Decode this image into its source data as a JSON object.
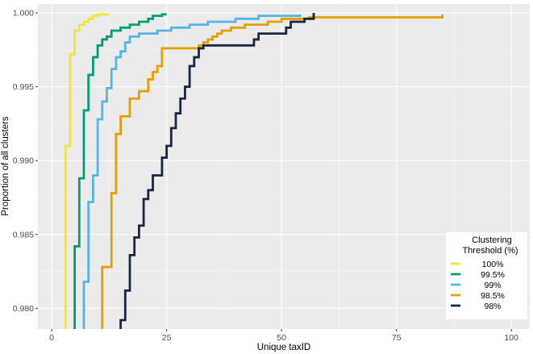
{
  "chart_data": {
    "type": "line",
    "title": "",
    "xlabel": "Unique taxID",
    "ylabel": "Proportion of all clusters",
    "xlim": [
      -3,
      104
    ],
    "ylim": [
      0.9786,
      1.0006
    ],
    "x_ticks": [
      0,
      25,
      50,
      75,
      100
    ],
    "x_tick_labels": [
      "0",
      "25",
      "50",
      "75",
      "100"
    ],
    "y_ticks": [
      0.98,
      0.985,
      0.99,
      0.995,
      1.0
    ],
    "y_tick_labels": [
      "0.980",
      "0.985",
      "0.990",
      "0.995",
      "1.000"
    ],
    "grid": true,
    "legend": {
      "title_lines": [
        "Clustering",
        "Threshold (%)"
      ],
      "position": "bottom-right"
    },
    "series": [
      {
        "name": "100%",
        "color": "#F0E442",
        "points": [
          [
            3,
            0.9786
          ],
          [
            3,
            0.991
          ],
          [
            4,
            0.991
          ],
          [
            4,
            0.9972
          ],
          [
            5,
            0.9972
          ],
          [
            5,
            0.9988
          ],
          [
            6,
            0.9988
          ],
          [
            6,
            0.9992
          ],
          [
            7,
            0.9992
          ],
          [
            7,
            0.9994
          ],
          [
            8,
            0.9994
          ],
          [
            8,
            0.9996
          ],
          [
            9,
            0.9996
          ],
          [
            9,
            0.9998
          ],
          [
            10,
            0.9998
          ],
          [
            10,
            0.9999
          ],
          [
            12.5,
            0.9999
          ]
        ]
      },
      {
        "name": "99.5%",
        "color": "#009E73",
        "points": [
          [
            5,
            0.9786
          ],
          [
            5,
            0.9842
          ],
          [
            6,
            0.9842
          ],
          [
            6,
            0.9888
          ],
          [
            7,
            0.9888
          ],
          [
            7,
            0.9934
          ],
          [
            8,
            0.9934
          ],
          [
            8,
            0.9958
          ],
          [
            9,
            0.9958
          ],
          [
            9,
            0.997
          ],
          [
            10,
            0.997
          ],
          [
            10,
            0.9978
          ],
          [
            11,
            0.9978
          ],
          [
            11,
            0.9982
          ],
          [
            12,
            0.9982
          ],
          [
            12,
            0.9984
          ],
          [
            13,
            0.9984
          ],
          [
            13,
            0.9988
          ],
          [
            15,
            0.9988
          ],
          [
            15,
            0.999
          ],
          [
            17,
            0.999
          ],
          [
            17,
            0.9992
          ],
          [
            19,
            0.9992
          ],
          [
            19,
            0.9994
          ],
          [
            21,
            0.9994
          ],
          [
            21,
            0.9996
          ],
          [
            22,
            0.9996
          ],
          [
            22,
            0.9998
          ],
          [
            24,
            0.9998
          ],
          [
            24,
            0.9999
          ],
          [
            25,
            0.9999
          ]
        ]
      },
      {
        "name": "99%",
        "color": "#56B4E9",
        "points": [
          [
            7,
            0.9786
          ],
          [
            7,
            0.9818
          ],
          [
            8,
            0.9818
          ],
          [
            8,
            0.9872
          ],
          [
            9,
            0.9872
          ],
          [
            9,
            0.989
          ],
          [
            10,
            0.989
          ],
          [
            10,
            0.9928
          ],
          [
            11,
            0.9928
          ],
          [
            11,
            0.994
          ],
          [
            12,
            0.994
          ],
          [
            12,
            0.9949
          ],
          [
            13,
            0.9949
          ],
          [
            13,
            0.9962
          ],
          [
            14,
            0.9962
          ],
          [
            14,
            0.997
          ],
          [
            15,
            0.997
          ],
          [
            15,
            0.9974
          ],
          [
            16,
            0.9974
          ],
          [
            16,
            0.998
          ],
          [
            17,
            0.998
          ],
          [
            17,
            0.9984
          ],
          [
            19,
            0.9984
          ],
          [
            19,
            0.9986
          ],
          [
            23,
            0.9986
          ],
          [
            23,
            0.9988
          ],
          [
            26,
            0.9988
          ],
          [
            26,
            0.999
          ],
          [
            30,
            0.999
          ],
          [
            30,
            0.9992
          ],
          [
            34,
            0.9992
          ],
          [
            34,
            0.9994
          ],
          [
            40,
            0.9994
          ],
          [
            40,
            0.9996
          ],
          [
            45,
            0.9996
          ],
          [
            45,
            0.9998
          ],
          [
            54,
            0.9998
          ],
          [
            54,
            0.9999
          ]
        ]
      },
      {
        "name": "98.5%",
        "color": "#E69F00",
        "points": [
          [
            11,
            0.9786
          ],
          [
            11,
            0.9828
          ],
          [
            13,
            0.9828
          ],
          [
            13,
            0.9878
          ],
          [
            14,
            0.9878
          ],
          [
            14,
            0.9918
          ],
          [
            15,
            0.9918
          ],
          [
            15,
            0.993
          ],
          [
            17,
            0.993
          ],
          [
            17,
            0.9942
          ],
          [
            19,
            0.9942
          ],
          [
            19,
            0.9947
          ],
          [
            21,
            0.9947
          ],
          [
            21,
            0.9955
          ],
          [
            22,
            0.9955
          ],
          [
            22,
            0.996
          ],
          [
            23,
            0.996
          ],
          [
            23,
            0.9964
          ],
          [
            24,
            0.9964
          ],
          [
            24,
            0.9976
          ],
          [
            32,
            0.9976
          ],
          [
            32,
            0.9978
          ],
          [
            33,
            0.9978
          ],
          [
            33,
            0.998
          ],
          [
            34,
            0.998
          ],
          [
            34,
            0.9982
          ],
          [
            35,
            0.9982
          ],
          [
            35,
            0.9984
          ],
          [
            36,
            0.9984
          ],
          [
            36,
            0.9986
          ],
          [
            37,
            0.9986
          ],
          [
            37,
            0.9988
          ],
          [
            39,
            0.9988
          ],
          [
            39,
            0.999
          ],
          [
            42,
            0.999
          ],
          [
            42,
            0.9992
          ],
          [
            47,
            0.9992
          ],
          [
            47,
            0.9994
          ],
          [
            50,
            0.9994
          ],
          [
            50,
            0.9996
          ],
          [
            56,
            0.9996
          ],
          [
            56,
            0.9997
          ],
          [
            85,
            0.9997
          ],
          [
            85,
            0.9999
          ]
        ]
      },
      {
        "name": "98%",
        "color": "#1B2642",
        "points": [
          [
            15,
            0.9786
          ],
          [
            15,
            0.9792
          ],
          [
            16,
            0.9792
          ],
          [
            16,
            0.9812
          ],
          [
            17,
            0.9812
          ],
          [
            17,
            0.9836
          ],
          [
            18,
            0.9836
          ],
          [
            18,
            0.9848
          ],
          [
            19,
            0.9848
          ],
          [
            19,
            0.9856
          ],
          [
            20,
            0.9856
          ],
          [
            20,
            0.9874
          ],
          [
            21,
            0.9874
          ],
          [
            21,
            0.988
          ],
          [
            22,
            0.988
          ],
          [
            22,
            0.989
          ],
          [
            24,
            0.989
          ],
          [
            24,
            0.9902
          ],
          [
            25,
            0.9902
          ],
          [
            25,
            0.991
          ],
          [
            26,
            0.991
          ],
          [
            26,
            0.9922
          ],
          [
            27,
            0.9922
          ],
          [
            27,
            0.9932
          ],
          [
            28,
            0.9932
          ],
          [
            28,
            0.9942
          ],
          [
            29,
            0.9942
          ],
          [
            29,
            0.995
          ],
          [
            30,
            0.995
          ],
          [
            30,
            0.9964
          ],
          [
            31,
            0.9964
          ],
          [
            31,
            0.997
          ],
          [
            32,
            0.997
          ],
          [
            32,
            0.9976
          ],
          [
            33,
            0.9976
          ],
          [
            33,
            0.9978
          ],
          [
            44,
            0.9978
          ],
          [
            44,
            0.9982
          ],
          [
            45,
            0.9982
          ],
          [
            45,
            0.9986
          ],
          [
            51,
            0.9986
          ],
          [
            51,
            0.999
          ],
          [
            52,
            0.999
          ],
          [
            52,
            0.9994
          ],
          [
            55,
            0.9994
          ],
          [
            55,
            0.9996
          ],
          [
            57,
            0.9996
          ],
          [
            57,
            1.0
          ]
        ]
      }
    ]
  }
}
